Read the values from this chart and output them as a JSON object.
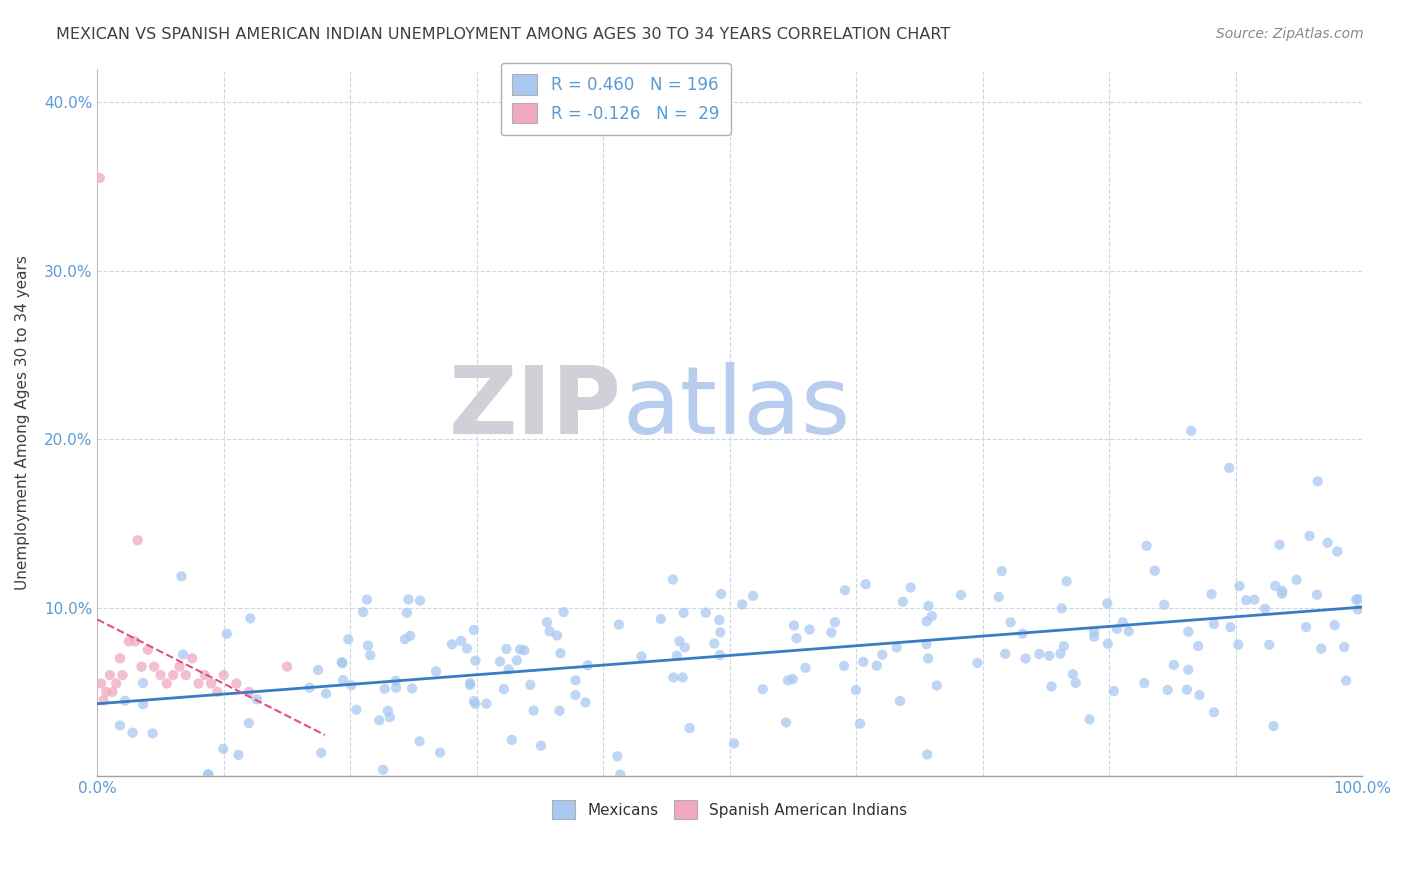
{
  "title": "MEXICAN VS SPANISH AMERICAN INDIAN UNEMPLOYMENT AMONG AGES 30 TO 34 YEARS CORRELATION CHART",
  "source": "Source: ZipAtlas.com",
  "xlabel": "",
  "ylabel": "Unemployment Among Ages 30 to 34 years",
  "xlim": [
    0,
    1.0
  ],
  "ylim": [
    0,
    0.42
  ],
  "xticks": [
    0.0,
    0.1,
    0.2,
    0.3,
    0.4,
    0.5,
    0.6,
    0.7,
    0.8,
    0.9,
    1.0
  ],
  "xticklabels": [
    "0.0%",
    "",
    "",
    "",
    "",
    "",
    "",
    "",
    "",
    "",
    "100.0%"
  ],
  "yticks": [
    0.0,
    0.1,
    0.2,
    0.3,
    0.4
  ],
  "yticklabels": [
    "",
    "10.0%",
    "20.0%",
    "30.0%",
    "40.0%"
  ],
  "mexican_R": 0.46,
  "mexican_N": 196,
  "spanish_R": -0.126,
  "spanish_N": 29,
  "mexican_color": "#a8c8f0",
  "spanish_color": "#f0a8c0",
  "mexican_line_color": "#3a7cc4",
  "spanish_line_color": "#e05080",
  "watermark_ZIP": "ZIP",
  "watermark_atlas": "atlas",
  "watermark_ZIP_color": "#d0d0d8",
  "watermark_atlas_color": "#b8ccee",
  "title_color": "#404040",
  "tick_color": "#5b9bd5"
}
